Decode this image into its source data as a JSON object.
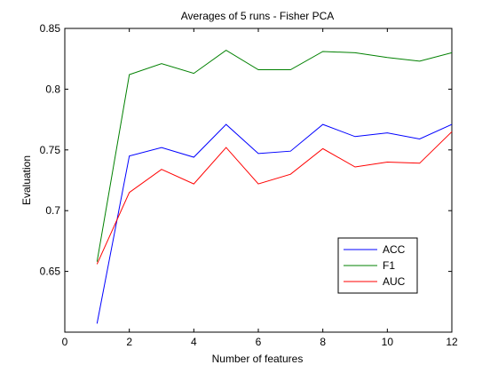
{
  "chart_data": {
    "type": "line",
    "title": "Averages of 5 runs - Fisher PCA",
    "xlabel": "Number of features",
    "ylabel": "Evaluation",
    "xlim": [
      0,
      12
    ],
    "ylim": [
      0.6,
      0.85
    ],
    "xticks": [
      0,
      2,
      4,
      6,
      8,
      10,
      12
    ],
    "yticks": [
      0.65,
      0.7,
      0.75,
      0.8,
      0.85
    ],
    "xtick_labels": [
      "0",
      "2",
      "4",
      "6",
      "8",
      "10",
      "12"
    ],
    "ytick_labels": [
      "0.65",
      "0.7",
      "0.75",
      "0.8",
      "0.85"
    ],
    "grid": false,
    "legend_position": "bottom-right",
    "x": [
      1,
      2,
      3,
      4,
      5,
      6,
      7,
      8,
      9,
      10,
      11,
      12
    ],
    "series": [
      {
        "name": "ACC",
        "color": "#0000ff",
        "values": [
          0.607,
          0.745,
          0.752,
          0.744,
          0.771,
          0.747,
          0.749,
          0.771,
          0.761,
          0.764,
          0.759,
          0.771
        ]
      },
      {
        "name": "F1",
        "color": "#008000",
        "values": [
          0.658,
          0.812,
          0.821,
          0.813,
          0.832,
          0.816,
          0.816,
          0.831,
          0.83,
          0.826,
          0.823,
          0.83
        ]
      },
      {
        "name": "AUC",
        "color": "#ff0000",
        "values": [
          0.656,
          0.715,
          0.734,
          0.722,
          0.752,
          0.722,
          0.73,
          0.751,
          0.736,
          0.74,
          0.739,
          0.765
        ]
      }
    ]
  }
}
